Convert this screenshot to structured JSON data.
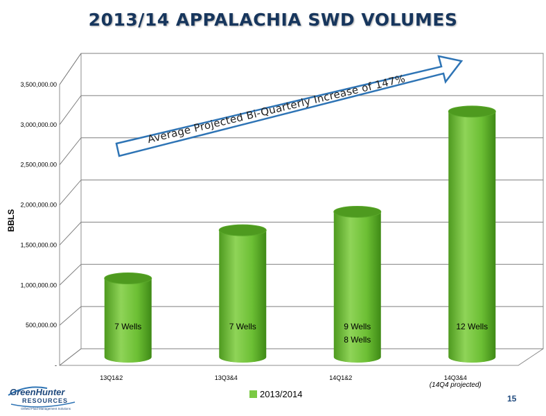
{
  "title": "2013/14 APPALACHIA SWD VOLUMES",
  "page_number": "15",
  "logo": {
    "name": "GreenHunter",
    "sub": "RESOURCES",
    "tagline": "Oilfield Fluid Management Solutions"
  },
  "annotation": "Average Projected Bi-Quarterly Increase of 147%",
  "colors": {
    "bar": "#7ac943",
    "bar_dark": "#4e9a1f",
    "bar_top": "#8fd458",
    "arrow": "#2e74b5",
    "title": "#17365d"
  },
  "chart_data": {
    "type": "bar",
    "title": "2013/14 APPALACHIA SWD VOLUMES",
    "ylabel": "BBLS",
    "xlabel": "",
    "categories": [
      "13Q1&2",
      "13Q3&4",
      "14Q1&2",
      "14Q3&4"
    ],
    "category_notes": [
      "",
      "",
      "",
      "(14Q4 projected)"
    ],
    "series": [
      {
        "name": "2013/2014",
        "values": [
          1050000,
          1650000,
          1880000,
          3130000
        ]
      }
    ],
    "bar_labels": [
      "7 Wells",
      "7 Wells",
      "9 Wells\n8 Wells",
      "12 Wells"
    ],
    "ylim": [
      0,
      3500000
    ],
    "yticks": [
      0,
      500000,
      1000000,
      1500000,
      2000000,
      2500000,
      3000000,
      3500000
    ],
    "ytick_labels": [
      "-",
      "500,000.00",
      "1,000,000.00",
      "1,500,000.00",
      "2,000,000.00",
      "2,500,000.00",
      "3,000,000.00",
      "3,500,000.00"
    ],
    "grid": true,
    "legend_position": "bottom"
  }
}
